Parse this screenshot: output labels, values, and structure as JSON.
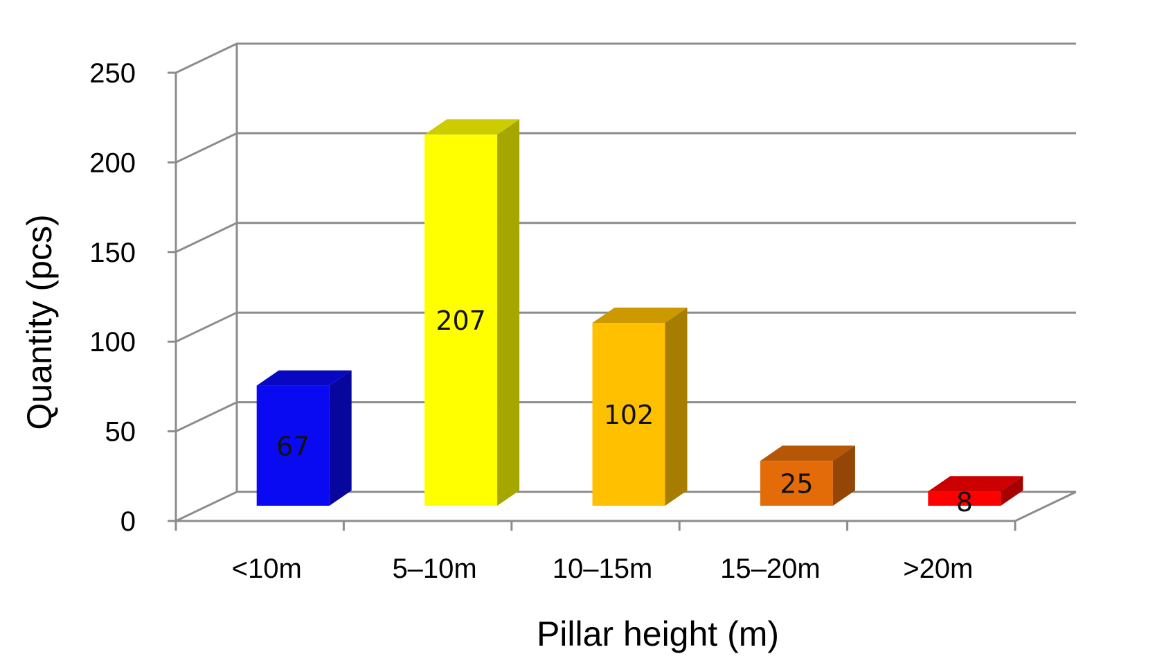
{
  "chart_data": {
    "type": "bar",
    "style": "3d-column",
    "categories": [
      "<10m",
      "5–10m",
      "10–15m",
      "15–20m",
      ">20m"
    ],
    "values": [
      67,
      207,
      102,
      25,
      8
    ],
    "data_labels": [
      "67",
      "207",
      "102",
      "25",
      "8"
    ],
    "colors": [
      "#0a0af2",
      "#ffff00",
      "#ffc000",
      "#e36c09",
      "#ff0000"
    ],
    "xlabel": "Pillar height (m)",
    "ylabel": "Quantity (pcs)",
    "ylim": [
      0,
      250
    ],
    "yticks": [
      "0",
      "50",
      "100",
      "150",
      "200",
      "250"
    ],
    "grid": true,
    "legend": "none"
  }
}
